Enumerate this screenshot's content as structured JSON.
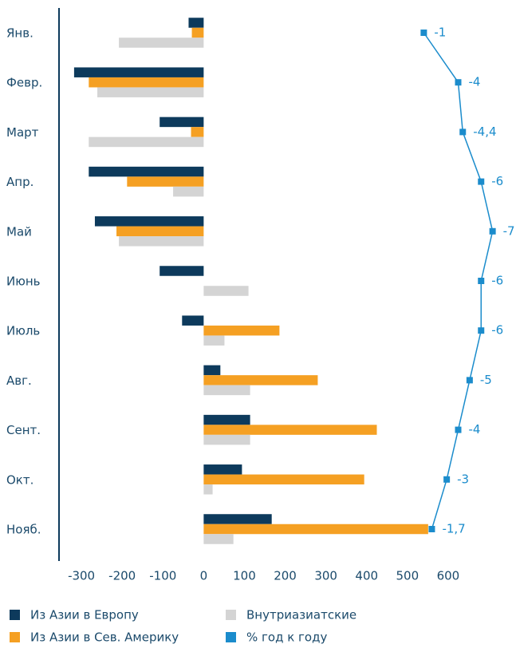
{
  "chart_data": {
    "type": "bar",
    "orientation": "horizontal",
    "categories": [
      "Янв.",
      "Февр.",
      "Март",
      "Апр.",
      "Май",
      "Июнь",
      "Июль",
      "Авг.",
      "Сент.",
      "Окт.",
      "Нояб."
    ],
    "series": [
      {
        "name": "Из Азии в Европу",
        "color": "#0d3a5c",
        "values": [
          -37,
          -318,
          -108,
          -282,
          -267,
          -108,
          -53,
          41,
          114,
          94,
          167
        ]
      },
      {
        "name": "Из Азии в Сев. Америку",
        "color": "#f5a023",
        "values": [
          -29,
          -282,
          -31,
          -188,
          -214,
          0,
          186,
          280,
          425,
          394,
          551
        ]
      },
      {
        "name": "Внутриазиатские",
        "color": "#d4d4d4",
        "values": [
          -208,
          -261,
          -282,
          -75,
          -208,
          110,
          51,
          114,
          114,
          22,
          73
        ]
      },
      {
        "name": "% год к году",
        "color": "#1b8ccc",
        "type": "line",
        "axis": "x2",
        "values": [
          -1,
          -4,
          -4.4,
          -6,
          -7,
          -6,
          -6,
          -5,
          -4,
          -3,
          -1.7
        ],
        "value_labels": [
          "-1",
          "-4",
          "-4,4",
          "-6",
          "-7",
          "-6",
          "-6",
          "-5",
          "-4",
          "-3",
          "-1,7"
        ]
      }
    ],
    "xlim": [
      -355,
      700
    ],
    "xticks": [
      -300,
      -200,
      -100,
      0,
      100,
      200,
      300,
      400,
      500,
      600
    ],
    "x2lim": [
      0,
      -8
    ],
    "grid": false
  }
}
